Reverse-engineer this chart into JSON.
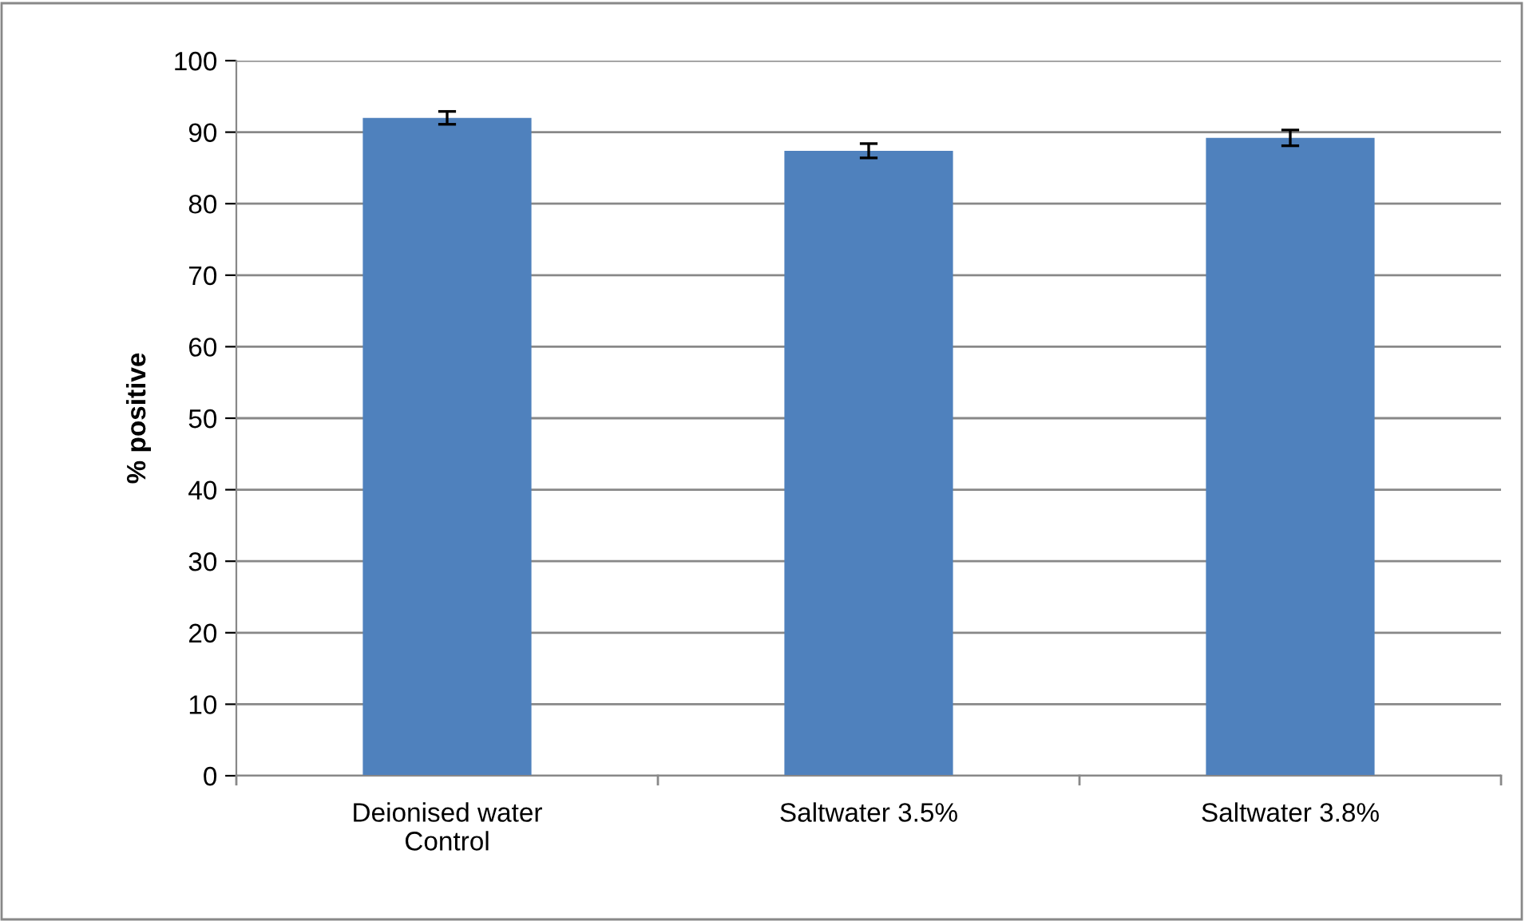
{
  "chart_data": {
    "type": "bar",
    "ylabel": "% positive",
    "categories": [
      "Deionised water\nControl",
      "Saltwater 3.5%",
      "Saltwater 3.8%"
    ],
    "values": [
      92.0,
      87.4,
      89.2
    ],
    "errors": [
      0.9,
      1.0,
      1.1
    ],
    "color": "#4f81bd",
    "ylim": [
      0,
      100
    ],
    "yticks": [
      0,
      10,
      20,
      30,
      40,
      50,
      60,
      70,
      80,
      90,
      100
    ],
    "grid": "y",
    "legend": false
  }
}
